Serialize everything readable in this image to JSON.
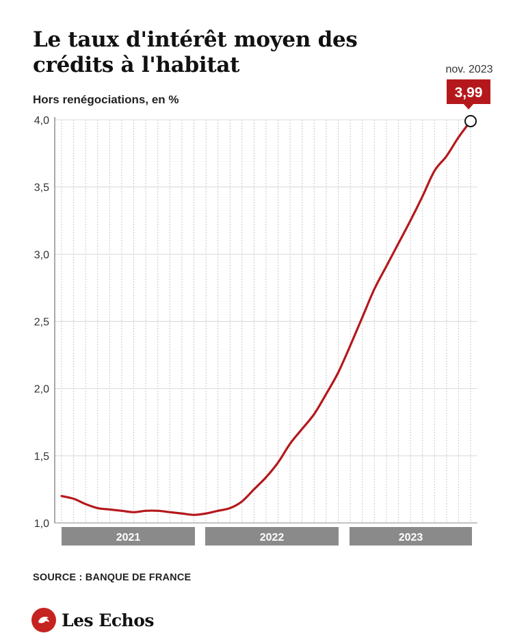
{
  "header": {
    "title": "Le taux d'intérêt moyen des crédits à l'habitat",
    "subtitle": "Hors renégociations, en %"
  },
  "chart_data": {
    "type": "line",
    "title": "Le taux d'intérêt moyen des crédits à l'habitat",
    "subtitle": "Hors renégociations, en %",
    "xlabel": "",
    "ylabel": "",
    "ylim": [
      1.0,
      4.0
    ],
    "yticks": [
      1.0,
      1.5,
      2.0,
      2.5,
      3.0,
      3.5,
      4.0
    ],
    "ytick_labels": [
      "1,0",
      "1,5",
      "2,0",
      "2,5",
      "3,0",
      "3,5",
      "4,0"
    ],
    "grid": "horizontal solid, vertical dotted monthly",
    "year_bands": [
      "2021",
      "2022",
      "2023"
    ],
    "x": [
      "2021-01",
      "2021-02",
      "2021-03",
      "2021-04",
      "2021-05",
      "2021-06",
      "2021-07",
      "2021-08",
      "2021-09",
      "2021-10",
      "2021-11",
      "2021-12",
      "2022-01",
      "2022-02",
      "2022-03",
      "2022-04",
      "2022-05",
      "2022-06",
      "2022-07",
      "2022-08",
      "2022-09",
      "2022-10",
      "2022-11",
      "2022-12",
      "2023-01",
      "2023-02",
      "2023-03",
      "2023-04",
      "2023-05",
      "2023-06",
      "2023-07",
      "2023-08",
      "2023-09",
      "2023-10",
      "2023-11"
    ],
    "series": [
      {
        "values": [
          1.2,
          1.18,
          1.14,
          1.11,
          1.1,
          1.09,
          1.08,
          1.09,
          1.09,
          1.08,
          1.07,
          1.06,
          1.07,
          1.09,
          1.11,
          1.16,
          1.25,
          1.34,
          1.45,
          1.59,
          1.7,
          1.81,
          1.96,
          2.12,
          2.32,
          2.53,
          2.74,
          2.91,
          3.08,
          3.25,
          3.43,
          3.62,
          3.73,
          3.87,
          3.99
        ],
        "color": "#b5181c"
      }
    ],
    "annotation": {
      "label": "nov. 2023",
      "value": "3,99"
    }
  },
  "footer": {
    "source": "SOURCE : BANQUE DE FRANCE",
    "brand": "Les Echos"
  },
  "colors": {
    "line": "#b5181c",
    "callout": "#b5181c",
    "band": "#8a8a8a",
    "grid": "#d9d9d9",
    "axis": "#555555",
    "logo": "#c5231f"
  }
}
